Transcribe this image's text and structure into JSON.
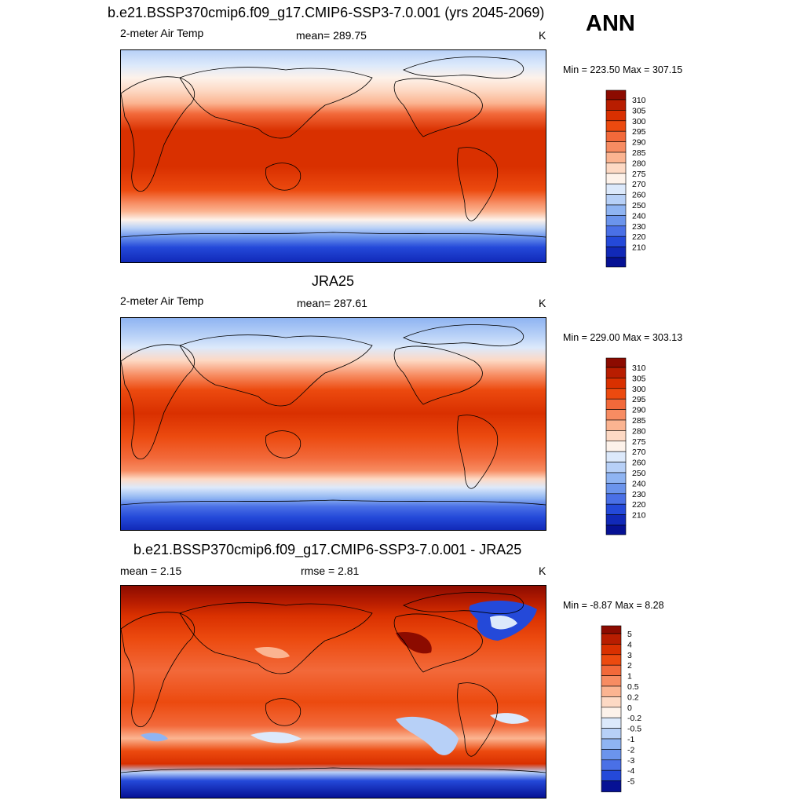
{
  "header": {
    "title": "b.e21.BSSP370cmip6.f09_g17.CMIP6-SSP3-7.0.001 (yrs 2045-2069)",
    "season": "ANN"
  },
  "panels": [
    {
      "id": "model",
      "variable": "2-meter Air Temp",
      "mean_text": "mean= 289.75",
      "units": "K",
      "minmax_text": "Min = 223.50 Max = 307.15",
      "kind": "abs"
    },
    {
      "id": "obs",
      "title": "JRA25",
      "variable": "2-meter Air Temp",
      "mean_text": "mean= 287.61",
      "units": "K",
      "minmax_text": "Min = 229.00 Max = 303.13",
      "kind": "abs"
    },
    {
      "id": "diff",
      "title": "b.e21.BSSP370cmip6.f09_g17.CMIP6-SSP3-7.0.001 - JRA25",
      "mean_text": "mean =   2.15",
      "rmse_text": "rmse =   2.81",
      "units": "K",
      "minmax_text": "Min =  -8.87 Max =   8.28",
      "kind": "diff"
    }
  ],
  "legends": {
    "abs": {
      "labels": [
        "310",
        "305",
        "300",
        "295",
        "290",
        "285",
        "280",
        "275",
        "270",
        "260",
        "250",
        "240",
        "230",
        "220",
        "210"
      ],
      "colors": [
        "#8c0b00",
        "#b81d00",
        "#d93000",
        "#ec4a0f",
        "#f2693a",
        "#f78c62",
        "#fbb491",
        "#fdd9c4",
        "#fdf2ea",
        "#dce9fb",
        "#b7d0f7",
        "#8fb4f2",
        "#6b94ec",
        "#4a70e6",
        "#2449d9",
        "#1129b8",
        "#061194"
      ]
    },
    "diff": {
      "labels": [
        "5",
        "4",
        "3",
        "2",
        "1",
        "0.5",
        "0.2",
        "0",
        "-0.2",
        "-0.5",
        "-1",
        "-2",
        "-3",
        "-4",
        "-5"
      ],
      "colors": [
        "#8c0b00",
        "#b81d00",
        "#d93000",
        "#ec4a0f",
        "#f2693a",
        "#f78c62",
        "#fbb491",
        "#fdd9c4",
        "#fdf2ea",
        "#dce9fb",
        "#b7d0f7",
        "#8fb4f2",
        "#6b94ec",
        "#4a70e6",
        "#2449d9",
        "#061194"
      ]
    }
  }
}
